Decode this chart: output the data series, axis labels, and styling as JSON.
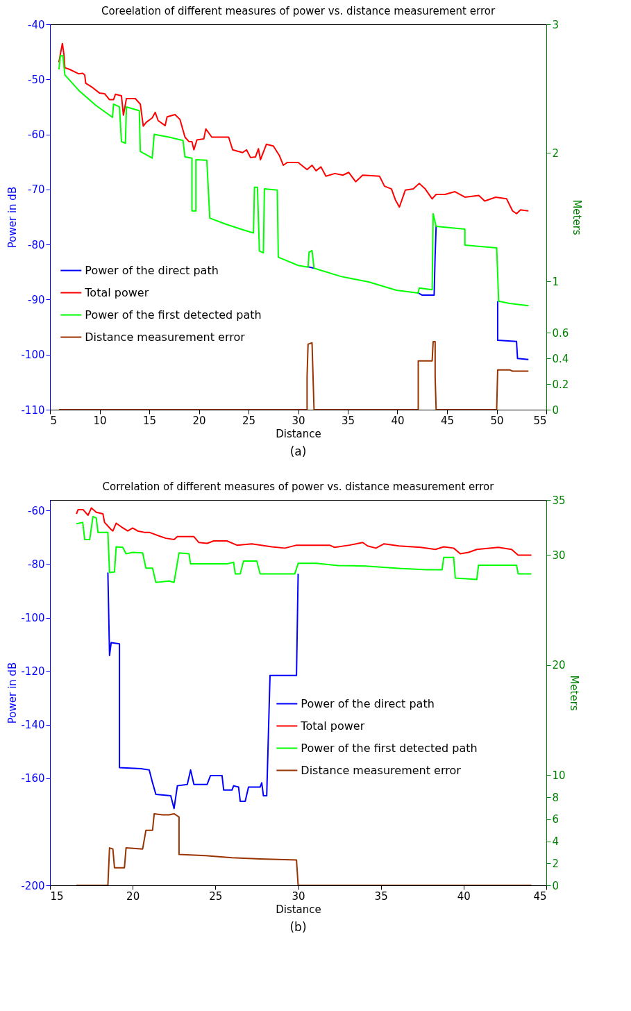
{
  "chart_data": [
    {
      "type": "line",
      "title": "Coreelation of different measures of power vs. distance measurement error",
      "xlabel": "Distance",
      "ylabel": "Power in dB",
      "y2label": "Meters",
      "xlim": [
        5,
        55
      ],
      "xticks": [
        5,
        10,
        15,
        20,
        25,
        30,
        35,
        40,
        45,
        50,
        55
      ],
      "ylim": [
        -110,
        -40
      ],
      "yticks": [
        -110,
        -100,
        -90,
        -80,
        -70,
        -60,
        -50,
        -40
      ],
      "y2lim": [
        0,
        3
      ],
      "y2ticks": [
        0,
        0.2,
        0.4,
        0.6,
        1,
        2,
        3
      ],
      "legend": "left",
      "annotations": [
        "(a)"
      ],
      "series": [
        {
          "name": "Power of the direct path",
          "color": "#0000ff",
          "x": [
            30.9,
            31.6,
            35.0,
            42.0,
            42.5,
            43.7,
            43.8,
            43.9,
            47.0,
            50.1,
            50.1,
            52.0,
            52.1,
            53.2
          ],
          "values": [
            -84.0,
            -84.3,
            null,
            -88.7,
            -89.2,
            -89.2,
            -82.0,
            -76.7,
            null,
            -90.3,
            -97.4,
            -97.6,
            -100.7,
            -100.9
          ]
        },
        {
          "name": "Total power",
          "color": "#ff0000",
          "x": [
            5.9,
            6.1,
            6.25,
            6.4,
            6.5,
            7.0,
            7.9,
            8.3,
            8.5,
            8.6,
            9.3,
            10.0,
            10.5,
            11.0,
            11.4,
            11.6,
            12.2,
            12.4,
            12.7,
            13.6,
            14.1,
            14.4,
            14.7,
            15.3,
            15.6,
            15.9,
            16.6,
            16.8,
            17.6,
            18.1,
            18.6,
            19.0,
            19.3,
            19.5,
            19.8,
            20.5,
            20.7,
            21.3,
            21.8,
            23.0,
            23.4,
            24.4,
            24.8,
            25.2,
            25.7,
            26.0,
            26.2,
            26.8,
            27.5,
            28.1,
            28.5,
            28.9,
            30.0,
            30.9,
            31.4,
            31.8,
            32.3,
            32.8,
            33.7,
            34.5,
            35.1,
            35.8,
            36.5,
            38.2,
            38.7,
            39.4,
            39.8,
            40.2,
            40.8,
            41.6,
            42.2,
            42.8,
            43.5,
            43.9,
            44.8,
            45.8,
            46.8,
            48.2,
            48.8,
            49.9,
            51.0,
            51.6,
            52.0,
            52.4,
            53.2
          ],
          "values": [
            -46.9,
            -44.9,
            -43.5,
            -45.4,
            -47.9,
            -48.2,
            -49.0,
            -48.9,
            -49.2,
            -50.7,
            -51.5,
            -52.5,
            -52.6,
            -53.7,
            -53.7,
            -52.7,
            -53.0,
            -56.5,
            -53.5,
            -53.5,
            -54.5,
            -58.5,
            -57.8,
            -57.0,
            -56.0,
            -57.5,
            -58.4,
            -56.8,
            -56.4,
            -57.3,
            -60.5,
            -61.3,
            -61.3,
            -62.8,
            -61.0,
            -60.8,
            -59.0,
            -60.5,
            -60.5,
            -60.5,
            -62.8,
            -63.3,
            -62.8,
            -64.2,
            -64.1,
            -62.6,
            -64.6,
            -61.8,
            -62.1,
            -63.8,
            -65.6,
            -65.1,
            -65.1,
            -66.4,
            -65.6,
            -66.6,
            -65.9,
            -67.6,
            -67.1,
            -67.4,
            -66.9,
            -68.6,
            -67.4,
            -67.6,
            -69.4,
            -69.9,
            -71.9,
            -73.2,
            -70.1,
            -69.9,
            -68.9,
            -69.9,
            -71.7,
            -70.9,
            -70.9,
            -70.4,
            -71.4,
            -71.1,
            -72.1,
            -71.4,
            -71.7,
            -73.9,
            -74.4,
            -73.7,
            -73.9
          ]
        },
        {
          "name": "Power of the first detected path",
          "color": "#00ff00",
          "x": [
            5.9,
            6.05,
            6.3,
            6.5,
            7.9,
            9.6,
            11.3,
            11.4,
            12.0,
            12.2,
            12.6,
            12.7,
            14.0,
            14.1,
            15.3,
            15.5,
            17.0,
            18.4,
            18.6,
            19.3,
            19.3,
            19.7,
            19.7,
            20.8,
            21.1,
            22.7,
            24.4,
            25.5,
            25.6,
            25.9,
            26.1,
            26.5,
            26.6,
            27.9,
            28.0,
            30.0,
            31.0,
            31.1,
            31.4,
            31.6,
            34.3,
            37.1,
            39.9,
            42.1,
            42.2,
            43.5,
            43.6,
            43.9,
            46.8,
            46.8,
            50.0,
            50.2,
            51.3,
            53.2
          ],
          "values": [
            -48.2,
            -45.7,
            -45.7,
            -49.2,
            -52.0,
            -54.7,
            -56.9,
            -54.5,
            -55.0,
            -61.3,
            -61.6,
            -55.0,
            -55.7,
            -63.1,
            -64.3,
            -60.0,
            -60.5,
            -61.1,
            -64.1,
            -64.3,
            -73.9,
            -73.9,
            -64.6,
            -64.7,
            -75.2,
            -76.3,
            -77.3,
            -77.9,
            -69.6,
            -69.6,
            -81.2,
            -81.5,
            -69.9,
            -70.1,
            -82.3,
            -83.8,
            -84.1,
            -81.4,
            -81.1,
            -84.3,
            -85.8,
            -86.8,
            -88.3,
            -88.8,
            -87.9,
            -88.2,
            -74.4,
            -76.7,
            -77.2,
            -80.1,
            -80.6,
            -90.3,
            -90.7,
            -91.1
          ]
        },
        {
          "name": "Distance measurement error",
          "color": "#993300",
          "axis": "y2",
          "x": [
            5.9,
            30.9,
            30.9,
            31.0,
            31.4,
            31.6,
            42.1,
            42.1,
            43.1,
            43.5,
            43.6,
            43.8,
            43.8,
            43.9,
            50.0,
            50.1,
            51.3,
            51.6,
            53.2
          ],
          "values": [
            0,
            0,
            0.26,
            0.51,
            0.52,
            0,
            0,
            0.38,
            0.38,
            0.38,
            0.53,
            0.53,
            0.26,
            0,
            0,
            0.31,
            0.31,
            0.3,
            0.3
          ]
        }
      ]
    },
    {
      "type": "line",
      "title": "Correlation of different measures of power vs. distance measurement error",
      "xlabel": "Distance",
      "ylabel": "Power in dB",
      "y2label": "Meters",
      "xlim": [
        15,
        45
      ],
      "xticks": [
        15,
        20,
        25,
        30,
        35,
        40,
        45
      ],
      "ylim": [
        -200,
        -56
      ],
      "yticks": [
        -200,
        -160,
        -140,
        -120,
        -100,
        -80,
        -60
      ],
      "y2lim": [
        0,
        35
      ],
      "y2ticks": [
        0,
        2,
        4,
        6,
        8,
        10,
        20,
        30,
        35
      ],
      "legend": "right",
      "annotations": [
        "(b)"
      ],
      "series": [
        {
          "name": "Power of the direct path",
          "color": "#0000ff",
          "x": [
            18.5,
            18.6,
            18.7,
            19.2,
            19.2,
            20.5,
            21.0,
            21.2,
            21.4,
            22.3,
            22.5,
            22.7,
            23.3,
            23.5,
            23.7,
            24.5,
            24.7,
            25.4,
            25.5,
            26.0,
            26.1,
            26.4,
            26.5,
            26.8,
            27.0,
            27.7,
            27.8,
            27.9,
            28.1,
            28.3,
            29.0,
            29.9,
            30.0
          ],
          "values": [
            -83.1,
            -114.1,
            -109.3,
            -109.8,
            -156.0,
            -156.4,
            -156.9,
            -161.7,
            -166.0,
            -166.5,
            -171.3,
            -162.8,
            -162.3,
            -156.9,
            -162.3,
            -162.3,
            -159.0,
            -159.0,
            -164.4,
            -164.4,
            -162.8,
            -163.3,
            -168.6,
            -168.6,
            -163.3,
            -163.3,
            -161.7,
            -166.5,
            -166.5,
            -121.6,
            -121.6,
            -121.6,
            -83.6
          ]
        },
        {
          "name": "Total power",
          "color": "#ff0000",
          "x": [
            16.6,
            16.7,
            17.0,
            17.3,
            17.5,
            17.8,
            18.2,
            18.3,
            18.7,
            18.8,
            19.0,
            19.3,
            19.7,
            20.0,
            20.3,
            20.7,
            21.0,
            21.7,
            22.0,
            22.5,
            22.7,
            23.7,
            24.0,
            24.5,
            24.9,
            25.7,
            26.3,
            27.2,
            28.4,
            29.2,
            29.9,
            30.7,
            31.9,
            32.2,
            33.1,
            33.9,
            34.2,
            34.7,
            35.2,
            36.1,
            37.4,
            38.3,
            38.8,
            39.4,
            39.8,
            40.3,
            40.8,
            42.1,
            42.9,
            43.3,
            44.1
          ],
          "values": [
            -61.2,
            -59.6,
            -59.6,
            -61.7,
            -59.0,
            -60.6,
            -61.2,
            -64.4,
            -67.1,
            -67.6,
            -64.7,
            -66.0,
            -67.6,
            -66.5,
            -67.6,
            -68.1,
            -68.1,
            -69.7,
            -70.3,
            -70.8,
            -69.7,
            -69.7,
            -71.9,
            -72.2,
            -71.3,
            -71.3,
            -72.9,
            -72.4,
            -73.5,
            -74.0,
            -72.9,
            -72.9,
            -72.9,
            -73.7,
            -72.9,
            -71.9,
            -73.2,
            -74.0,
            -72.4,
            -73.2,
            -73.7,
            -74.5,
            -73.5,
            -74.0,
            -76.1,
            -75.6,
            -74.5,
            -73.7,
            -74.5,
            -76.6,
            -76.6
          ]
        },
        {
          "name": "Power of the first detected path",
          "color": "#00ff00",
          "x": [
            16.6,
            16.98,
            17.1,
            17.4,
            17.6,
            17.8,
            17.9,
            18.5,
            18.6,
            18.9,
            19.0,
            19.4,
            19.6,
            20.0,
            20.6,
            20.8,
            21.2,
            21.4,
            22.2,
            22.5,
            22.8,
            23.4,
            23.5,
            25.7,
            26.1,
            26.2,
            26.5,
            26.7,
            27.5,
            27.7,
            29.8,
            30.0,
            31.1,
            32.4,
            34.1,
            36.2,
            37.8,
            38.7,
            38.8,
            39.4,
            39.5,
            40.8,
            40.9,
            43.2,
            43.3,
            44.1
          ],
          "values": [
            -64.9,
            -64.4,
            -70.8,
            -70.8,
            -62.2,
            -62.8,
            -68.1,
            -68.1,
            -83.1,
            -82.9,
            -73.5,
            -73.7,
            -76.1,
            -75.6,
            -75.8,
            -81.5,
            -81.5,
            -86.8,
            -86.3,
            -86.8,
            -75.8,
            -76.1,
            -79.9,
            -79.9,
            -79.3,
            -83.6,
            -83.6,
            -78.8,
            -78.8,
            -83.6,
            -83.6,
            -79.7,
            -79.7,
            -80.5,
            -80.7,
            -81.6,
            -82.1,
            -82.1,
            -77.5,
            -77.5,
            -85.2,
            -85.7,
            -80.4,
            -80.4,
            -83.6,
            -83.6
          ]
        },
        {
          "name": "Distance measurement error",
          "color": "#993300",
          "axis": "y2",
          "x": [
            16.6,
            18.5,
            18.6,
            18.8,
            18.9,
            19.5,
            19.6,
            20.6,
            20.8,
            21.2,
            21.3,
            21.8,
            22.2,
            22.5,
            22.8,
            22.8,
            24.4,
            26.0,
            27.7,
            29.9,
            30.0,
            44.1
          ],
          "values": [
            0,
            0,
            3.4,
            3.3,
            1.6,
            1.6,
            3.4,
            3.3,
            5.0,
            5.0,
            6.5,
            6.4,
            6.4,
            6.5,
            6.2,
            2.8,
            2.7,
            2.5,
            2.4,
            2.3,
            0,
            0
          ]
        }
      ]
    }
  ]
}
